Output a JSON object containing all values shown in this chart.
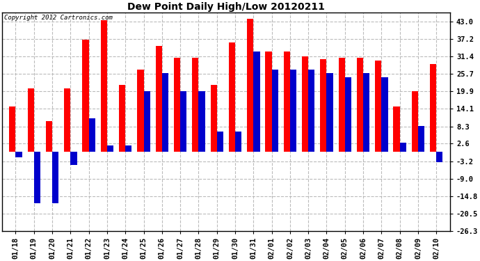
{
  "title": "Dew Point Daily High/Low 20120211",
  "copyright": "Copyright 2012 Cartronics.com",
  "dates": [
    "01/18",
    "01/19",
    "01/20",
    "01/21",
    "01/22",
    "01/23",
    "01/24",
    "01/25",
    "01/26",
    "01/27",
    "01/28",
    "01/29",
    "01/30",
    "01/31",
    "02/01",
    "02/02",
    "02/03",
    "02/04",
    "02/05",
    "02/06",
    "02/07",
    "02/08",
    "02/09",
    "02/10"
  ],
  "highs": [
    15.0,
    21.0,
    10.0,
    21.0,
    37.0,
    43.5,
    22.0,
    27.0,
    35.0,
    31.0,
    31.0,
    22.0,
    36.0,
    44.0,
    33.0,
    33.0,
    31.5,
    30.5,
    31.0,
    31.0,
    30.0,
    15.0,
    20.0,
    29.0
  ],
  "lows": [
    -2.0,
    -17.0,
    -17.0,
    -4.5,
    11.0,
    2.0,
    2.0,
    20.0,
    26.0,
    20.0,
    20.0,
    6.5,
    6.5,
    33.0,
    27.0,
    27.0,
    27.0,
    26.0,
    24.5,
    26.0,
    24.5,
    3.0,
    8.5,
    -3.5
  ],
  "high_color": "#ff0000",
  "low_color": "#0000cc",
  "background_color": "#ffffff",
  "yticks": [
    43.0,
    37.2,
    31.4,
    25.7,
    19.9,
    14.1,
    8.3,
    2.6,
    -3.2,
    -9.0,
    -14.8,
    -20.5,
    -26.3
  ],
  "ylim": [
    -26.3,
    46.0
  ],
  "bar_width": 0.35,
  "title_fontsize": 10,
  "tick_fontsize": 7.5
}
